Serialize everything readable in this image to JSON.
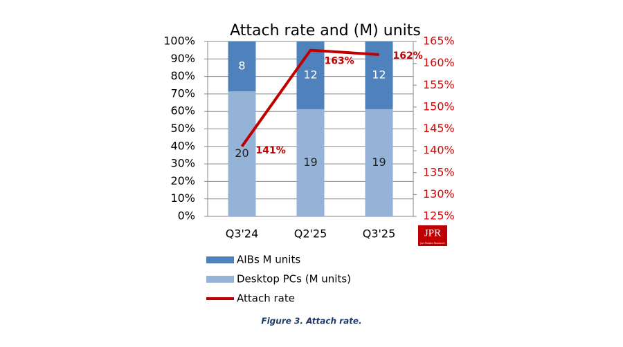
{
  "chart_data": {
    "type": "bar",
    "stacking": "percent",
    "title": "Attach rate and (M) units",
    "categories": [
      "Q3'24",
      "Q2'25",
      "Q3'25"
    ],
    "series": [
      {
        "name": "Desktop PCs (M units)",
        "color": "#95b3d7",
        "values": [
          20,
          19,
          19
        ]
      },
      {
        "name": "AIBs M units",
        "color": "#4f81bd",
        "values": [
          8,
          12,
          12
        ]
      },
      {
        "name": "Attach rate",
        "type": "line",
        "axis": "y2",
        "color": "#c00000",
        "values": [
          141,
          163,
          162
        ],
        "value_labels": [
          "141%",
          "163%",
          "162%"
        ]
      }
    ],
    "ylim": [
      0,
      100
    ],
    "yticks": [
      {
        "value": 0,
        "label": "0%"
      },
      {
        "value": 10,
        "label": "10%"
      },
      {
        "value": 20,
        "label": "20%"
      },
      {
        "value": 30,
        "label": "30%"
      },
      {
        "value": 40,
        "label": "40%"
      },
      {
        "value": 50,
        "label": "50%"
      },
      {
        "value": 60,
        "label": "60%"
      },
      {
        "value": 70,
        "label": "70%"
      },
      {
        "value": 80,
        "label": "80%"
      },
      {
        "value": 90,
        "label": "90%"
      },
      {
        "value": 100,
        "label": "100%"
      }
    ],
    "y2lim": [
      125,
      165
    ],
    "y2ticks": [
      {
        "value": 125,
        "label": "125%"
      },
      {
        "value": 130,
        "label": "130%"
      },
      {
        "value": 135,
        "label": "135%"
      },
      {
        "value": 140,
        "label": "140%"
      },
      {
        "value": 145,
        "label": "145%"
      },
      {
        "value": 150,
        "label": "150%"
      },
      {
        "value": 155,
        "label": "155%"
      },
      {
        "value": 160,
        "label": "160%"
      },
      {
        "value": 165,
        "label": "165%"
      }
    ],
    "grid": true,
    "legend": "bottom"
  },
  "logo": {
    "text": "JPR",
    "subtext": "Jon Peddie Research"
  },
  "caption": "Figure 3. Attach rate."
}
